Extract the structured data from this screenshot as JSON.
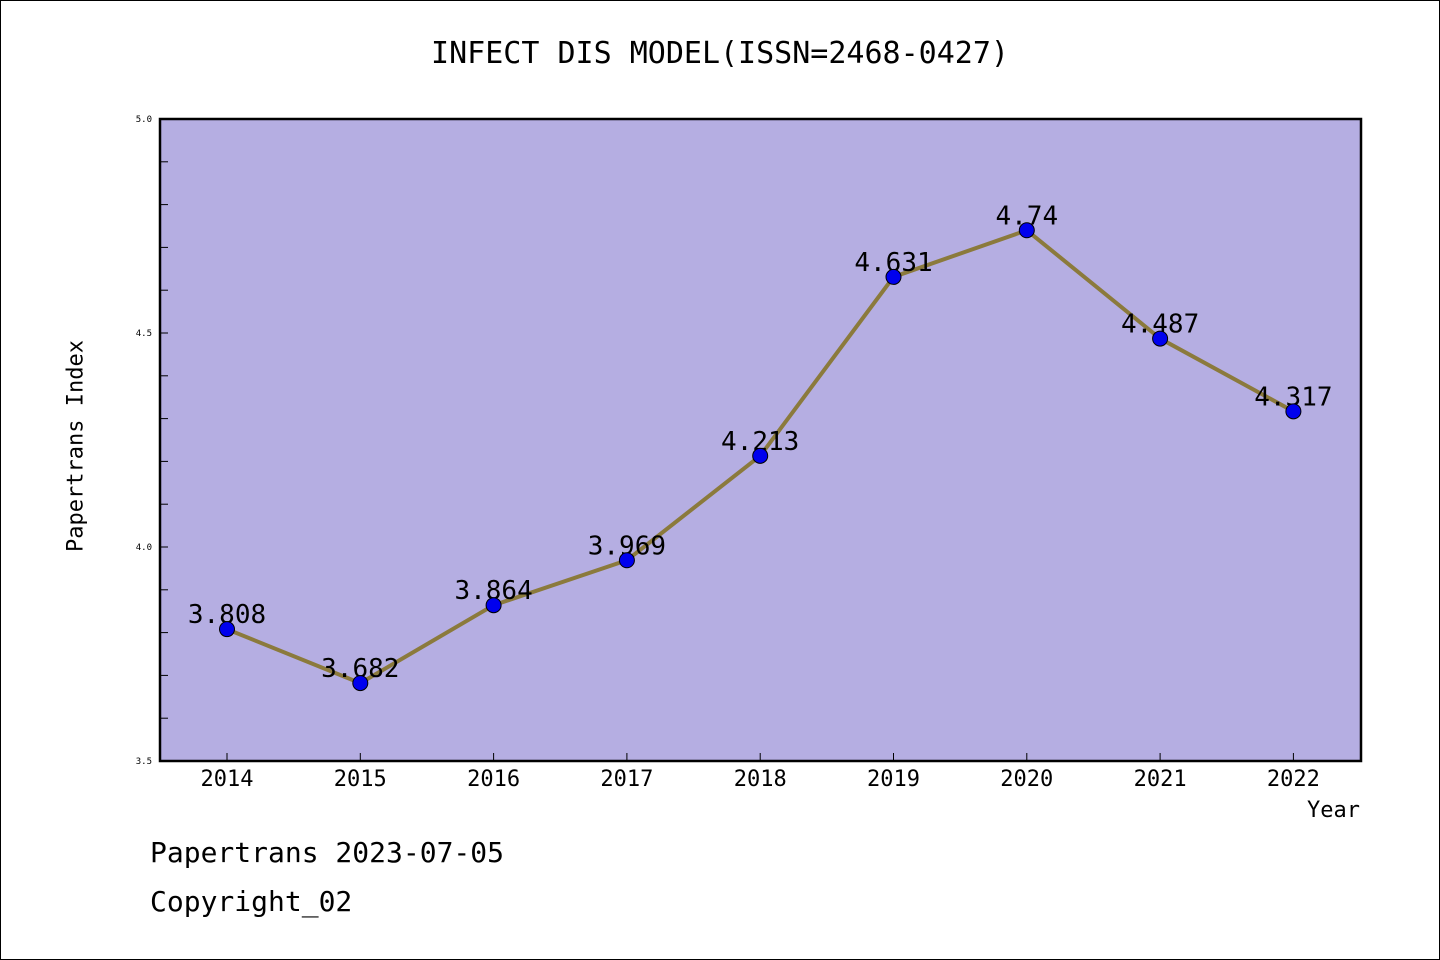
{
  "chart_data": {
    "type": "line",
    "title": "INFECT DIS MODEL(ISSN=2468-0427)",
    "xlabel": "Year",
    "ylabel": "Papertrans Index",
    "categories": [
      "2014",
      "2015",
      "2016",
      "2017",
      "2018",
      "2019",
      "2020",
      "2021",
      "2022"
    ],
    "series": [
      {
        "values": [
          3.808,
          3.682,
          3.864,
          3.969,
          4.213,
          4.631,
          4.74,
          4.487,
          4.317
        ]
      }
    ],
    "data_labels": [
      "3.808",
      "3.682",
      "3.864",
      "3.969",
      "4.213",
      "4.631",
      "4.74",
      "4.487",
      "4.317"
    ],
    "ylim": [
      3.5,
      5.0
    ],
    "yticks": [
      "3.5",
      "4.0",
      "4.5",
      "5.0"
    ],
    "grid": false,
    "colors": {
      "plot_background": "#b5aee2",
      "line": "#8b7a3c",
      "marker": "#0000ee"
    }
  },
  "footer": {
    "line1": "Papertrans 2023-07-05",
    "line2": "Copyright_02"
  }
}
